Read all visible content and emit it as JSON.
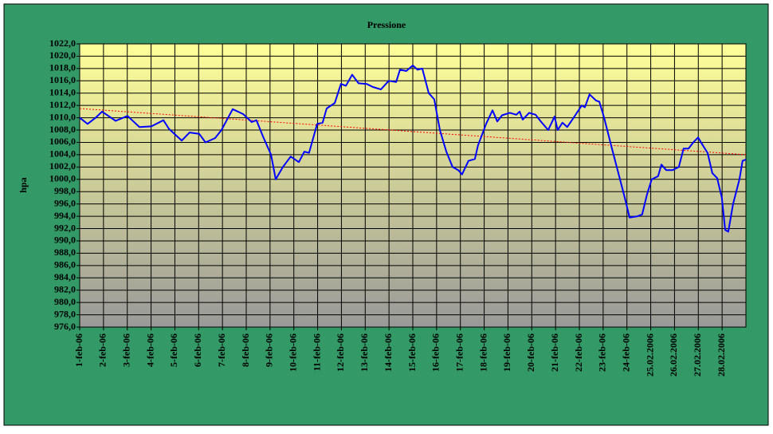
{
  "chart_data": {
    "type": "line",
    "title": "Pressione",
    "y_label": "hpa",
    "xlim": [
      0,
      28
    ],
    "xticks": [
      {
        "value": 0,
        "label": "1-feb-06"
      },
      {
        "value": 1,
        "label": "2-feb-06"
      },
      {
        "value": 2,
        "label": "3-feb-06"
      },
      {
        "value": 3,
        "label": "4-feb-06"
      },
      {
        "value": 4,
        "label": "5-feb-06"
      },
      {
        "value": 5,
        "label": "6-feb-06"
      },
      {
        "value": 6,
        "label": "7-feb-06"
      },
      {
        "value": 7,
        "label": "8-feb-06"
      },
      {
        "value": 8,
        "label": "9-feb-06"
      },
      {
        "value": 9,
        "label": "10-feb-06"
      },
      {
        "value": 10,
        "label": "11-feb-06"
      },
      {
        "value": 11,
        "label": "12-feb-06"
      },
      {
        "value": 12,
        "label": "13-feb-06"
      },
      {
        "value": 13,
        "label": "14-feb-06"
      },
      {
        "value": 14,
        "label": "15-feb-06"
      },
      {
        "value": 15,
        "label": "16-feb-06"
      },
      {
        "value": 16,
        "label": "17-feb-06"
      },
      {
        "value": 17,
        "label": "18-feb-06"
      },
      {
        "value": 18,
        "label": "19-feb-06"
      },
      {
        "value": 19,
        "label": "20-feb-06"
      },
      {
        "value": 20,
        "label": "21-feb-06"
      },
      {
        "value": 21,
        "label": "22-feb-06"
      },
      {
        "value": 22,
        "label": "23-feb-06"
      },
      {
        "value": 23,
        "label": "24-feb-06"
      },
      {
        "value": 24,
        "label": "25.02.2006"
      },
      {
        "value": 25,
        "label": "26.02.2006"
      },
      {
        "value": 26,
        "label": "27.02.2006"
      },
      {
        "value": 27,
        "label": "28.02.2006"
      }
    ],
    "ylim": [
      976,
      1022
    ],
    "yticks": [
      {
        "value": 976,
        "label": "976,0"
      },
      {
        "value": 978,
        "label": "978,0"
      },
      {
        "value": 980,
        "label": "980,0"
      },
      {
        "value": 982,
        "label": "982,0"
      },
      {
        "value": 984,
        "label": "984,0"
      },
      {
        "value": 986,
        "label": "986,0"
      },
      {
        "value": 988,
        "label": "988,0"
      },
      {
        "value": 990,
        "label": "990,0"
      },
      {
        "value": 992,
        "label": "992,0"
      },
      {
        "value": 994,
        "label": "994,0"
      },
      {
        "value": 996,
        "label": "996,0"
      },
      {
        "value": 998,
        "label": "998,0"
      },
      {
        "value": 1000,
        "label": "1000,0"
      },
      {
        "value": 1002,
        "label": "1002,0"
      },
      {
        "value": 1004,
        "label": "1004,0"
      },
      {
        "value": 1006,
        "label": "1006,0"
      },
      {
        "value": 1008,
        "label": "1008,0"
      },
      {
        "value": 1010,
        "label": "1010,0"
      },
      {
        "value": 1012,
        "label": "1012,0"
      },
      {
        "value": 1014,
        "label": "1014,0"
      },
      {
        "value": 1016,
        "label": "1016,0"
      },
      {
        "value": 1018,
        "label": "1018,0"
      },
      {
        "value": 1020,
        "label": "1020,0"
      },
      {
        "value": 1022,
        "label": "1022,0"
      }
    ],
    "grid": true,
    "x": [
      0,
      0.33,
      0.67,
      0.94,
      1.51,
      2.01,
      2.51,
      3.01,
      3.52,
      3.75,
      4.29,
      4.62,
      5.02,
      5.29,
      5.69,
      5.96,
      6.43,
      6.87,
      7.23,
      7.43,
      7.7,
      8.04,
      8.24,
      8.54,
      8.87,
      9.21,
      9.44,
      9.64,
      9.98,
      10.21,
      10.38,
      10.72,
      10.98,
      11.19,
      11.45,
      11.72,
      12.06,
      12.32,
      12.66,
      12.99,
      13.3,
      13.46,
      13.73,
      14,
      14.2,
      14.4,
      14.67,
      14.9,
      15.14,
      15.41,
      15.67,
      15.91,
      16.07,
      16.34,
      16.61,
      16.74,
      17.08,
      17.35,
      17.55,
      17.75,
      18.08,
      18.35,
      18.49,
      18.62,
      18.89,
      19.16,
      19.36,
      19.69,
      19.96,
      20.09,
      20.29,
      20.49,
      20.76,
      21.1,
      21.23,
      21.43,
      21.7,
      21.84,
      22.04,
      22.37,
      22.64,
      22.91,
      23.11,
      23.44,
      23.64,
      23.84,
      24.04,
      24.31,
      24.45,
      24.65,
      24.92,
      25.18,
      25.38,
      25.59,
      25.79,
      25.99,
      26.19,
      26.39,
      26.59,
      26.79,
      26.99,
      27.13,
      27.26,
      27.46,
      27.73,
      27.86,
      28
    ],
    "series": [
      {
        "color": "#0000ff",
        "values": [
          1010,
          1009,
          1010,
          1011,
          1009.5,
          1010.3,
          1008.5,
          1008.6,
          1009.6,
          1008.2,
          1006.3,
          1007.6,
          1007.4,
          1006,
          1006.7,
          1008,
          1011.4,
          1010.6,
          1009.3,
          1009.6,
          1007,
          1004,
          1000,
          1002,
          1003.7,
          1002.8,
          1004.5,
          1004.3,
          1009,
          1009.2,
          1011.5,
          1012.4,
          1015.5,
          1015.2,
          1017,
          1015.6,
          1015.5,
          1015,
          1014.6,
          1016,
          1015.8,
          1017.8,
          1017.6,
          1018.5,
          1017.8,
          1018,
          1014,
          1013,
          1008,
          1004.5,
          1002,
          1001.5,
          1000.8,
          1003,
          1003.3,
          1005.5,
          1009,
          1011.2,
          1009.4,
          1010.4,
          1010.8,
          1010.5,
          1011,
          1009.7,
          1010.8,
          1010.5,
          1009.5,
          1008,
          1010.2,
          1008,
          1009.2,
          1008.5,
          1010,
          1012,
          1011.7,
          1013.8,
          1012.8,
          1012.6,
          1010,
          1005,
          1001,
          997,
          993.8,
          994,
          994.3,
          997.5,
          1000,
          1000.5,
          1002.4,
          1001.5,
          1001.5,
          1002,
          1005,
          1005,
          1006,
          1006.8,
          1005.5,
          1004.3,
          1001,
          1000.2,
          997,
          991.8,
          991.5,
          996,
          1000,
          1003,
          1003.2
        ]
      }
    ],
    "trendline": {
      "color": "#ff0000",
      "x": [
        0,
        28
      ],
      "values": [
        1011.5,
        1004
      ]
    }
  }
}
